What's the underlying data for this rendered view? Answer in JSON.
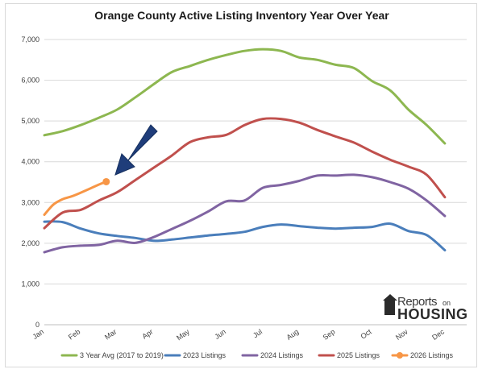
{
  "chart_data": {
    "type": "line",
    "title": "Orange County Active Listing Inventory Year Over Year",
    "xlabel": "",
    "ylabel": "",
    "ylim": [
      0,
      7000
    ],
    "yticks": [
      "0",
      "1,000",
      "2,000",
      "3,000",
      "4,000",
      "5,000",
      "6,000",
      "7,000"
    ],
    "ytick_values": [
      0,
      1000,
      2000,
      3000,
      4000,
      5000,
      6000,
      7000
    ],
    "x_tick_labels": [
      "Jan",
      "Feb",
      "Mar",
      "Apr",
      "May",
      "Jun",
      "Jul",
      "Aug",
      "Sep",
      "Oct",
      "Nov",
      "Dec"
    ],
    "grid": "horizontal",
    "legend_position": "bottom",
    "annotation": "arrow pointing to latest 2026 Listings value",
    "series": [
      {
        "name": "3 Year Avg (2017 to 2019)",
        "color": "#8db750",
        "x": [
          0,
          0.5,
          1,
          1.5,
          2,
          2.5,
          3,
          3.5,
          4,
          4.5,
          5,
          5.5,
          6,
          6.5,
          7,
          7.5,
          8,
          8.5,
          9,
          9.5,
          10,
          10.5,
          11
        ],
        "values": [
          4650,
          4750,
          4900,
          5080,
          5280,
          5580,
          5900,
          6200,
          6350,
          6500,
          6620,
          6720,
          6760,
          6720,
          6560,
          6500,
          6380,
          6300,
          5980,
          5750,
          5280,
          4900,
          4450
        ]
      },
      {
        "name": "2023 Listings",
        "color": "#4a7ebb",
        "x": [
          0,
          0.5,
          1,
          1.5,
          2,
          2.5,
          3,
          3.5,
          4,
          4.5,
          5,
          5.5,
          6,
          6.5,
          7,
          7.5,
          8,
          8.5,
          9,
          9.5,
          10,
          10.5,
          11
        ],
        "values": [
          2530,
          2520,
          2360,
          2240,
          2180,
          2130,
          2060,
          2090,
          2140,
          2190,
          2230,
          2280,
          2400,
          2460,
          2420,
          2380,
          2360,
          2380,
          2400,
          2480,
          2300,
          2200,
          1830
        ]
      },
      {
        "name": "2024 Listings",
        "color": "#8064a2",
        "x": [
          0,
          0.5,
          1,
          1.5,
          2,
          2.5,
          3,
          3.5,
          4,
          4.5,
          5,
          5.5,
          6,
          6.5,
          7,
          7.5,
          8,
          8.5,
          9,
          9.5,
          10,
          10.5,
          11
        ],
        "values": [
          1780,
          1900,
          1940,
          1960,
          2060,
          2010,
          2150,
          2350,
          2550,
          2780,
          3030,
          3050,
          3360,
          3430,
          3530,
          3660,
          3660,
          3680,
          3620,
          3500,
          3340,
          3050,
          2670
        ]
      },
      {
        "name": "2025 Listings",
        "color": "#c0504d",
        "x": [
          0,
          0.5,
          1,
          1.5,
          2,
          2.5,
          3,
          3.5,
          4,
          4.5,
          5,
          5.5,
          6,
          6.5,
          7,
          7.5,
          8,
          8.5,
          9,
          9.5,
          10,
          10.5,
          11
        ],
        "values": [
          2370,
          2750,
          2820,
          3050,
          3250,
          3550,
          3850,
          4150,
          4480,
          4600,
          4660,
          4900,
          5050,
          5050,
          4960,
          4780,
          4620,
          4470,
          4250,
          4050,
          3880,
          3680,
          3130
        ]
      },
      {
        "name": "2026 Listings",
        "color": "#f79646",
        "x": [
          0,
          0.25,
          0.5,
          0.75,
          1,
          1.25,
          1.5,
          1.7
        ],
        "values": [
          2700,
          2950,
          3080,
          3150,
          3240,
          3340,
          3440,
          3510
        ]
      }
    ]
  },
  "logo": {
    "text_reports": "Reports",
    "text_on": "on",
    "text_housing": "HOUSING"
  }
}
